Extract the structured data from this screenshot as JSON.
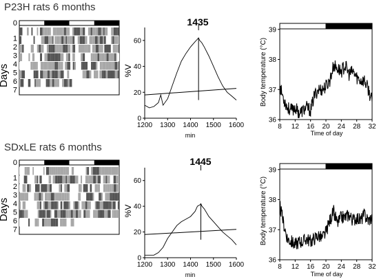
{
  "panels": [
    {
      "title": "P23H rats 6 months",
      "actogram": {
        "ylabel": "Days",
        "day_labels": [
          "0",
          "1",
          "2",
          "3",
          "4",
          "5",
          "6",
          "7"
        ]
      },
      "periodogram": {
        "peak_label": "1435",
        "ylabel": "%V",
        "xlabel": "min",
        "x_ticks": [
          "1200",
          "1300",
          "1400",
          "1500",
          "1600"
        ],
        "y_ticks": [
          "0",
          "20",
          "40",
          "60"
        ]
      },
      "temperature": {
        "ylabel": "Body temperature (°C)",
        "xlabel": "Time of day",
        "x_ticks": [
          "8",
          "12",
          "16",
          "20",
          "24",
          "28",
          "32"
        ],
        "y_ticks": [
          "36",
          "37",
          "38",
          "39"
        ]
      }
    },
    {
      "title": "SDxLE rats 6 months",
      "actogram": {
        "ylabel": "Days",
        "day_labels": [
          "0",
          "1",
          "2",
          "3",
          "4",
          "5",
          "6",
          "7"
        ]
      },
      "periodogram": {
        "peak_label": "1445",
        "ylabel": "%V",
        "xlabel": "min",
        "x_ticks": [
          "1200",
          "1300",
          "1400",
          "1500",
          "1600"
        ],
        "y_ticks": [
          "0",
          "20",
          "40",
          "60"
        ]
      },
      "temperature": {
        "ylabel": "Body temperature (°C)",
        "xlabel": "Time of day",
        "x_ticks": [
          "8",
          "12",
          "16",
          "20",
          "24",
          "28",
          "32"
        ],
        "y_ticks": [
          "36",
          "37",
          "38",
          "39"
        ]
      }
    }
  ],
  "chart_data": [
    {
      "type": "heatmap",
      "title": "P23H rats 6 months",
      "ylabel": "Days",
      "days": [
        "0",
        "1",
        "2",
        "3",
        "4",
        "5",
        "6",
        "7"
      ],
      "colors": {
        "low": "#ffffff",
        "mid": "#a8a8a8",
        "high": "#555555"
      }
    },
    {
      "type": "line",
      "title": "1435",
      "xlabel": "min",
      "ylabel": "%V",
      "xlim": [
        1200,
        1600
      ],
      "ylim": [
        0,
        70
      ],
      "peak_x": 1435,
      "series": [
        {
          "x": [
            1200,
            1220,
            1240,
            1260,
            1270,
            1280,
            1300,
            1320,
            1340,
            1360,
            1380,
            1400,
            1420,
            1430,
            1435,
            1440,
            1445,
            1450,
            1460,
            1480,
            1500,
            1520,
            1540,
            1560,
            1580,
            1600
          ],
          "values": [
            10,
            8,
            9,
            12,
            18,
            10,
            15,
            25,
            35,
            44,
            50,
            55,
            59,
            61,
            62,
            60,
            59,
            58,
            55,
            48,
            40,
            32,
            25,
            20,
            17,
            14
          ]
        },
        {
          "x": [
            1200,
            1600
          ],
          "values": [
            18,
            23
          ]
        }
      ]
    },
    {
      "type": "line",
      "xlabel": "Time of day",
      "ylabel": "Body temperature (°C)",
      "xlim": [
        8,
        32
      ],
      "ylim": [
        36,
        39.2
      ],
      "light_bar": [
        {
          "from": 8,
          "to": 20,
          "state": "light"
        },
        {
          "from": 20,
          "to": 32,
          "state": "dark"
        }
      ],
      "series": [
        {
          "x": [
            8,
            9,
            10,
            11,
            12,
            13,
            14,
            15,
            16,
            17,
            18,
            19,
            20,
            21,
            22,
            23,
            24,
            25,
            26,
            27,
            28,
            29,
            30,
            31,
            32
          ],
          "values": [
            37.1,
            36.7,
            36.4,
            36.3,
            36.4,
            36.2,
            36.3,
            36.4,
            36.3,
            36.8,
            37.0,
            37.0,
            37.1,
            37.3,
            37.8,
            37.7,
            37.6,
            37.8,
            37.5,
            37.6,
            37.4,
            37.3,
            37.3,
            37.0,
            36.6
          ]
        }
      ]
    },
    {
      "type": "heatmap",
      "title": "SDxLE rats 6 months",
      "ylabel": "Days",
      "days": [
        "0",
        "1",
        "2",
        "3",
        "4",
        "5",
        "6",
        "7"
      ],
      "colors": {
        "low": "#ffffff",
        "mid": "#a8a8a8",
        "high": "#555555"
      }
    },
    {
      "type": "line",
      "title": "1445",
      "xlabel": "min",
      "ylabel": "%V",
      "xlim": [
        1200,
        1600
      ],
      "ylim": [
        0,
        70
      ],
      "peak_x": 1445,
      "series": [
        {
          "x": [
            1200,
            1220,
            1240,
            1260,
            1280,
            1300,
            1320,
            1340,
            1360,
            1380,
            1400,
            1420,
            1430,
            1440,
            1445,
            1450,
            1460,
            1480,
            1500,
            1520,
            1540,
            1560,
            1580,
            1600
          ],
          "values": [
            2,
            2,
            2,
            4,
            8,
            15,
            20,
            25,
            28,
            30,
            32,
            36,
            40,
            41,
            42,
            40,
            38,
            32,
            28,
            24,
            20,
            17,
            14,
            10
          ]
        },
        {
          "x": [
            1200,
            1600
          ],
          "values": [
            18,
            22
          ]
        }
      ]
    },
    {
      "type": "line",
      "xlabel": "Time of day",
      "ylabel": "Body temperature (°C)",
      "xlim": [
        8,
        32
      ],
      "ylim": [
        36,
        39.2
      ],
      "light_bar": [
        {
          "from": 8,
          "to": 20,
          "state": "light"
        },
        {
          "from": 20,
          "to": 32,
          "state": "dark"
        }
      ],
      "series": [
        {
          "x": [
            8,
            9,
            10,
            11,
            12,
            13,
            14,
            15,
            16,
            17,
            18,
            19,
            20,
            21,
            22,
            23,
            24,
            25,
            26,
            27,
            28,
            29,
            30,
            31,
            32
          ],
          "values": [
            37.8,
            37.2,
            36.7,
            36.6,
            36.5,
            36.6,
            36.6,
            36.7,
            36.6,
            36.7,
            36.8,
            36.7,
            36.9,
            37.3,
            37.6,
            37.2,
            37.4,
            37.4,
            37.5,
            37.3,
            37.4,
            37.3,
            37.5,
            37.3,
            37.4
          ]
        }
      ]
    }
  ]
}
